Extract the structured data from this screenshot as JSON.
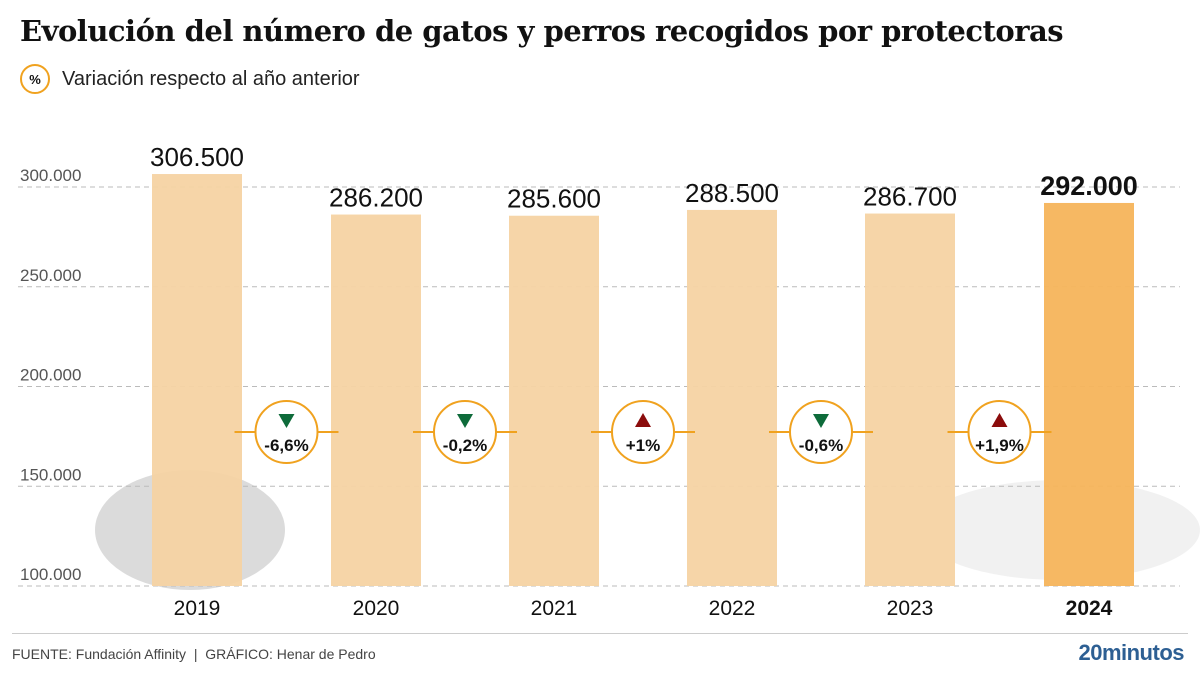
{
  "title": "Evolución del número de gatos y perros recogidos por protectoras",
  "legend": {
    "symbol": "%",
    "label": "Variación respecto al año anterior"
  },
  "chart_data": {
    "type": "bar",
    "categories": [
      "2019",
      "2020",
      "2021",
      "2022",
      "2023",
      "2024"
    ],
    "values": [
      306500,
      286200,
      285600,
      288500,
      286700,
      292000
    ],
    "value_labels": [
      "306.500",
      "286.200",
      "285.600",
      "288.500",
      "286.700",
      "292.000"
    ],
    "ylim": [
      100000,
      300000
    ],
    "yticks": [
      100000,
      150000,
      200000,
      250000,
      300000
    ],
    "ytick_labels": [
      "100.000",
      "150.000",
      "200.000",
      "250.000",
      "300.000"
    ],
    "grid": true,
    "highlight": "2024",
    "changes": [
      {
        "label": "-6,6%",
        "direction": "down"
      },
      {
        "label": "-0,2%",
        "direction": "down"
      },
      {
        "label": "+1%",
        "direction": "up"
      },
      {
        "label": "-0,6%",
        "direction": "down"
      },
      {
        "label": "+1,9%",
        "direction": "up"
      }
    ],
    "colors": {
      "bar": "#f5d3a3",
      "highlight": "#f6b45b",
      "circle": "#f0a21f",
      "down": "#0e6b3a",
      "up": "#8b0c0c",
      "grid": "#bbbbbb"
    }
  },
  "footer": {
    "source": "FUENTE: Fundación Affinity  |  GRÁFICO: Henar de Pedro",
    "logo": "20minutos"
  }
}
